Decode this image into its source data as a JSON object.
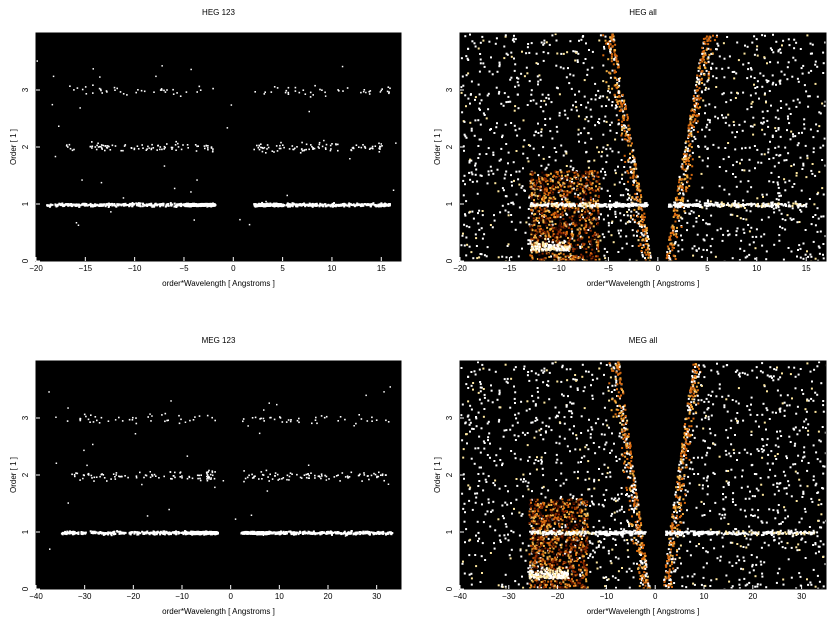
{
  "chart_data": [
    {
      "type": "heatmap",
      "title": "HEG 123",
      "xlabel": "order*Wavelength [ Angstroms ]",
      "ylabel": "Order [ 1 ]",
      "xlim": [
        -20,
        17
      ],
      "ylim": [
        0,
        4
      ],
      "xticks": [
        -20,
        -15,
        -10,
        -5,
        0,
        5,
        10,
        15
      ],
      "yticks": [
        0,
        1,
        2,
        3
      ],
      "background": "#000000",
      "colormap": [
        "#3a0a00",
        "#8c2a00",
        "#d86a10",
        "#f5b040",
        "#ffe8a0",
        "#ffffff"
      ],
      "events_shown": "orders 1-3 only",
      "order_rows": [
        {
          "order": 1,
          "x_ranges": [
            [
              -19,
              -2
            ],
            [
              2,
              16
            ]
          ],
          "density": "high"
        },
        {
          "order": 2,
          "x_ranges": [
            [
              -17,
              -2
            ],
            [
              2,
              15
            ]
          ],
          "density": "medium"
        },
        {
          "order": 3,
          "x_ranges": [
            [
              -17,
              -2
            ],
            [
              2,
              16
            ]
          ],
          "density": "low"
        }
      ]
    },
    {
      "type": "heatmap",
      "title": "HEG all",
      "xlabel": "order*Wavelength [ Angstroms ]",
      "ylabel": "Order [ 1 ]",
      "xlim": [
        -20,
        17
      ],
      "ylim": [
        0,
        4
      ],
      "xticks": [
        -20,
        -15,
        -10,
        -5,
        0,
        5,
        10,
        15
      ],
      "yticks": [
        0,
        1,
        2,
        3
      ],
      "background": "#000000",
      "colormap": [
        "#3a0a00",
        "#8c2a00",
        "#d86a10",
        "#f5b040",
        "#ffe8a0",
        "#ffffff"
      ],
      "events_shown": "all orders",
      "order_rows": [
        {
          "order": 1,
          "x_ranges": [
            [
              -13,
              -1
            ],
            [
              1,
              15
            ]
          ],
          "density": "high"
        }
      ]
    },
    {
      "type": "heatmap",
      "title": "MEG 123",
      "xlabel": "order*Wavelength [ Angstroms ]",
      "ylabel": "Order [ 1 ]",
      "xlim": [
        -40,
        35
      ],
      "ylim": [
        0,
        4
      ],
      "xticks": [
        -40,
        -30,
        -20,
        -10,
        0,
        10,
        20,
        30
      ],
      "yticks": [
        0,
        1,
        2,
        3
      ],
      "background": "#000000",
      "colormap": [
        "#3a0a00",
        "#8c2a00",
        "#d86a10",
        "#f5b040",
        "#ffe8a0",
        "#ffffff"
      ],
      "events_shown": "orders 1-3 only",
      "order_rows": [
        {
          "order": 1,
          "x_ranges": [
            [
              -35,
              -3
            ],
            [
              2,
              33
            ]
          ],
          "density": "high"
        },
        {
          "order": 2,
          "x_ranges": [
            [
              -33,
              -3
            ],
            [
              2,
              32
            ]
          ],
          "density": "medium"
        },
        {
          "order": 3,
          "x_ranges": [
            [
              -34,
              -3
            ],
            [
              2,
              33
            ]
          ],
          "density": "low"
        }
      ]
    },
    {
      "type": "heatmap",
      "title": "MEG all",
      "xlabel": "order*Wavelength [ Angstroms ]",
      "ylabel": "Order [ 1 ]",
      "xlim": [
        -40,
        35
      ],
      "ylim": [
        0,
        4
      ],
      "xticks": [
        -40,
        -30,
        -20,
        -10,
        0,
        10,
        20,
        30
      ],
      "yticks": [
        0,
        1,
        2,
        3
      ],
      "background": "#000000",
      "colormap": [
        "#3a0a00",
        "#8c2a00",
        "#d86a10",
        "#f5b040",
        "#ffe8a0",
        "#ffffff"
      ],
      "events_shown": "all orders",
      "order_rows": [
        {
          "order": 1,
          "x_ranges": [
            [
              -26,
              -2
            ],
            [
              2,
              33
            ]
          ],
          "density": "high"
        }
      ]
    }
  ]
}
